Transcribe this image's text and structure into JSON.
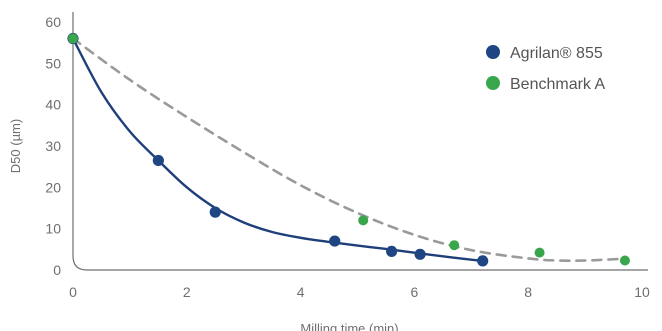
{
  "chart_data": {
    "type": "scatter",
    "xlabel": "Milling time (min)",
    "ylabel": "D50 (µm)",
    "xlim": [
      0,
      10
    ],
    "ylim": [
      0,
      60
    ],
    "x_ticks": [
      0,
      2,
      4,
      6,
      8,
      10
    ],
    "y_ticks": [
      0,
      10,
      20,
      30,
      40,
      50,
      60
    ],
    "grid": false,
    "legend_position": "top-right",
    "series": [
      {
        "name": "Agrilan® 855",
        "color": "#1f3f7a",
        "marker_color": "#1f4582",
        "trend_line": "solid",
        "points": [
          {
            "x": 0,
            "y": 56
          },
          {
            "x": 1.5,
            "y": 26.5
          },
          {
            "x": 2.5,
            "y": 14
          },
          {
            "x": 4.6,
            "y": 7
          },
          {
            "x": 5.6,
            "y": 4.5
          },
          {
            "x": 6.1,
            "y": 3.8
          },
          {
            "x": 7.2,
            "y": 2.2
          }
        ],
        "curve": [
          {
            "x": 0,
            "y": 56
          },
          {
            "x": 0.5,
            "y": 43
          },
          {
            "x": 1,
            "y": 33.5
          },
          {
            "x": 1.5,
            "y": 26.5
          },
          {
            "x": 2,
            "y": 20
          },
          {
            "x": 2.5,
            "y": 15
          },
          {
            "x": 3,
            "y": 11.5
          },
          {
            "x": 3.5,
            "y": 9.2
          },
          {
            "x": 4,
            "y": 7.8
          },
          {
            "x": 4.5,
            "y": 6.8
          },
          {
            "x": 5,
            "y": 5.9
          },
          {
            "x": 5.5,
            "y": 5.1
          },
          {
            "x": 6,
            "y": 4.2
          },
          {
            "x": 6.5,
            "y": 3.3
          },
          {
            "x": 7,
            "y": 2.5
          },
          {
            "x": 7.2,
            "y": 2.2
          }
        ]
      },
      {
        "name": "Benchmark A",
        "color": "#9a9a9a",
        "marker_color": "#3aa64c",
        "trend_line": "dashed",
        "points": [
          {
            "x": 0,
            "y": 56
          },
          {
            "x": 5.1,
            "y": 12
          },
          {
            "x": 6.7,
            "y": 6
          },
          {
            "x": 8.2,
            "y": 4.2
          },
          {
            "x": 9.7,
            "y": 2.3
          }
        ],
        "curve": [
          {
            "x": 0,
            "y": 56
          },
          {
            "x": 1,
            "y": 46
          },
          {
            "x": 2,
            "y": 37
          },
          {
            "x": 3,
            "y": 28.5
          },
          {
            "x": 4,
            "y": 20.5
          },
          {
            "x": 5,
            "y": 13.8
          },
          {
            "x": 6,
            "y": 8.5
          },
          {
            "x": 7,
            "y": 4.8
          },
          {
            "x": 8,
            "y": 2.8
          },
          {
            "x": 8.5,
            "y": 2.3
          },
          {
            "x": 9,
            "y": 2.3
          },
          {
            "x": 9.5,
            "y": 2.6
          },
          {
            "x": 9.7,
            "y": 2.8
          }
        ]
      }
    ]
  }
}
